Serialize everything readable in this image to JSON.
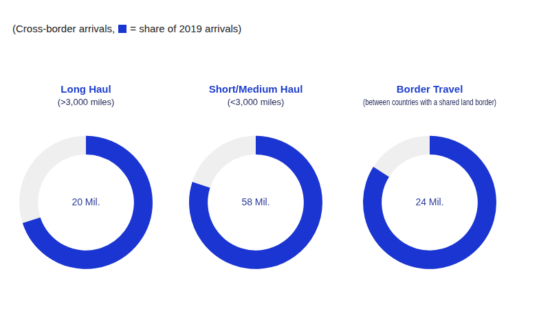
{
  "header": {
    "prefix": "(Cross-border arrivals,",
    "swatch_color": "#1a35d1",
    "suffix": "= share of 2019 arrivals)"
  },
  "chart_data": [
    {
      "type": "doughnut",
      "title": "Long Haul",
      "subtitle": "(>3,000 miles)",
      "annotation": "20 Mil.",
      "values": [
        70,
        30
      ],
      "colors": [
        "#1a35d1",
        "#efefef"
      ]
    },
    {
      "type": "doughnut",
      "title": "Short/Medium Haul",
      "subtitle": "(<3,000 miles)",
      "annotation": "58 Mil.",
      "values": [
        80,
        20
      ],
      "colors": [
        "#1a35d1",
        "#efefef"
      ]
    },
    {
      "type": "doughnut",
      "title": "Border Travel",
      "subtitle": "(between countries with a shared land border)",
      "annotation": "24 Mil.",
      "values": [
        84,
        16
      ],
      "colors": [
        "#1a35d1",
        "#efefef"
      ]
    }
  ]
}
